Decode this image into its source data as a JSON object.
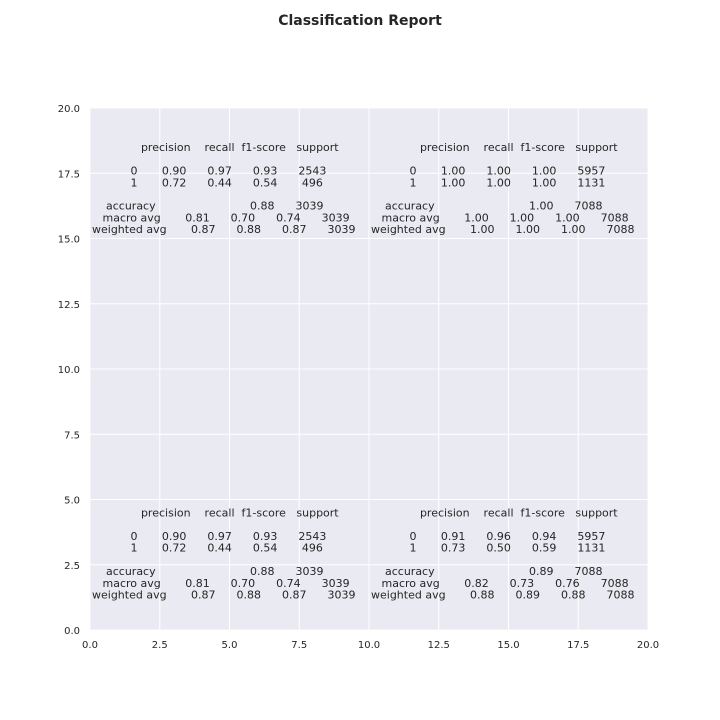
{
  "chart_data": {
    "type": "table",
    "title": "Classification Report",
    "xlabel": "",
    "ylabel": "",
    "xlim": [
      0,
      20
    ],
    "ylim": [
      0,
      20
    ],
    "xticks": [
      "0.0",
      "2.5",
      "5.0",
      "7.5",
      "10.0",
      "12.5",
      "15.0",
      "17.5",
      "20.0"
    ],
    "yticks": [
      "0.0",
      "2.5",
      "5.0",
      "7.5",
      "10.0",
      "12.5",
      "15.0",
      "17.5",
      "20.0"
    ],
    "grid": true,
    "background": "#eaeaf2",
    "grid_color": "#ffffff",
    "reports": [
      {
        "x": 0,
        "y": 18.5,
        "lines": [
          "              precision    recall  f1-score   support",
          "",
          "           0       0.90      0.97      0.93      2543",
          "           1       0.72      0.44      0.54       496",
          "",
          "    accuracy                           0.88      3039",
          "   macro avg       0.81      0.70      0.74      3039",
          "weighted avg       0.87      0.88      0.87      3039"
        ]
      },
      {
        "x": 10,
        "y": 18.5,
        "lines": [
          "              precision    recall  f1-score   support",
          "",
          "           0       1.00      1.00      1.00      5957",
          "           1       1.00      1.00      1.00      1131",
          "",
          "    accuracy                           1.00      7088",
          "   macro avg       1.00      1.00      1.00      7088",
          "weighted avg       1.00      1.00      1.00      7088"
        ]
      },
      {
        "x": 0,
        "y": 4.5,
        "lines": [
          "              precision    recall  f1-score   support",
          "",
          "           0       0.90      0.97      0.93      2543",
          "           1       0.72      0.44      0.54       496",
          "",
          "    accuracy                           0.88      3039",
          "   macro avg       0.81      0.70      0.74      3039",
          "weighted avg       0.87      0.88      0.87      3039"
        ]
      },
      {
        "x": 10,
        "y": 4.5,
        "lines": [
          "              precision    recall  f1-score   support",
          "",
          "           0       0.91      0.96      0.94      5957",
          "           1       0.73      0.50      0.59      1131",
          "",
          "    accuracy                           0.89      7088",
          "   macro avg       0.82      0.73      0.76      7088",
          "weighted avg       0.88      0.89      0.88      7088"
        ]
      }
    ]
  }
}
